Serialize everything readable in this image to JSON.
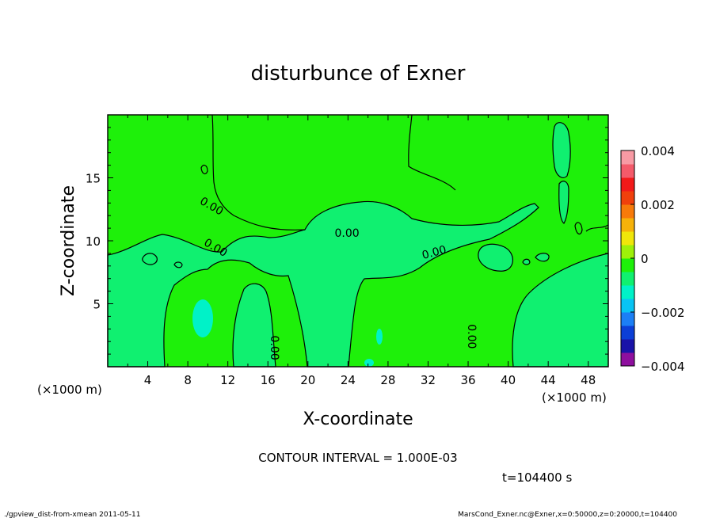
{
  "chart_data": {
    "type": "heatmap",
    "title": "disturbunce of Exner",
    "xlabel": "X-coordinate",
    "ylabel": "Z-coordinate",
    "x_unit": "(×1000 m)",
    "y_unit": "(×1000 m)",
    "xlim": [
      0,
      50
    ],
    "ylim": [
      0,
      20
    ],
    "x_ticks": [
      4,
      8,
      12,
      16,
      20,
      24,
      28,
      32,
      36,
      40,
      44,
      48
    ],
    "y_ticks": [
      5,
      10,
      15
    ],
    "contour_labels": [
      {
        "text": "0.00",
        "x": 10.2,
        "z": 12.5
      },
      {
        "text": "0.00",
        "x": 10.6,
        "z": 9.2
      },
      {
        "text": "0.00",
        "x": 23.9,
        "z": 10.3
      },
      {
        "text": "0.00",
        "x": 32.7,
        "z": 8.8
      },
      {
        "text": "0.00",
        "x": 16.3,
        "z": 1.5
      },
      {
        "text": "0.00",
        "x": 36.0,
        "z": 2.4
      }
    ],
    "colorbar": {
      "min": -0.004,
      "max": 0.004,
      "tick_labels": [
        "0.004",
        "0.002",
        "0",
        "−0.002",
        "−0.004"
      ],
      "tick_values": [
        0.004,
        0.002,
        0,
        -0.002,
        -0.004
      ],
      "colors": [
        "#8e0f9e",
        "#1a13a8",
        "#0c3fd6",
        "#1c7ff5",
        "#08c4f4",
        "#00f2c8",
        "#10f070",
        "#1ef00a",
        "#9ef00a",
        "#f0e60a",
        "#f6b20a",
        "#f77a0a",
        "#f0400c",
        "#f21a1a",
        "#f45a6a",
        "#f89aa4"
      ]
    },
    "contour_interval_text": "CONTOUR INTERVAL = 1.000E-03",
    "time_text": "t=104400 s"
  },
  "footer": {
    "left": "./gpview_dist-from-xmean  2011-05-11",
    "right": "MarsCond_Exner.nc@Exner,x=0:50000,z=0:20000,t=104400"
  }
}
